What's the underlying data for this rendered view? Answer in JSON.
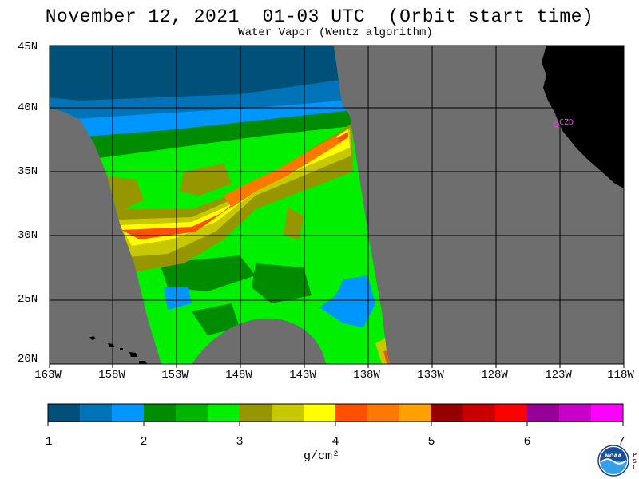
{
  "title": "November 12, 2021  01-03 UTC  (Orbit start time)",
  "subtitle": "Water Vapor (Wentz algorithm)",
  "map": {
    "lat_labels": [
      "45N",
      "40N",
      "35N",
      "30N",
      "25N",
      "20N"
    ],
    "lon_labels": [
      "163W",
      "158W",
      "153W",
      "148W",
      "143W",
      "138W",
      "133W",
      "128W",
      "123W",
      "118W"
    ],
    "lat_range": [
      20,
      45
    ],
    "lon_range": [
      -163,
      -118
    ],
    "station_label": "CZD",
    "colors": {
      "land": "#000000",
      "no_data": "#6e6e6e",
      "grid": "#000000",
      "station": "#ff33ff"
    }
  },
  "colorbar": {
    "tick_labels": [
      "1",
      "2",
      "3",
      "4",
      "5",
      "6",
      "7"
    ],
    "units": "g/cm²",
    "colors": [
      "#00507a",
      "#0073b9",
      "#0096ff",
      "#008c00",
      "#00b400",
      "#00f000",
      "#969600",
      "#c8c800",
      "#ffff00",
      "#ff5000",
      "#ff7800",
      "#ffa000",
      "#960000",
      "#c80000",
      "#ff0000",
      "#960096",
      "#c800c8",
      "#ff00ff"
    ]
  },
  "logo": {
    "name": "noaa-logo",
    "text": "NOAA",
    "side_text": "PSL"
  }
}
